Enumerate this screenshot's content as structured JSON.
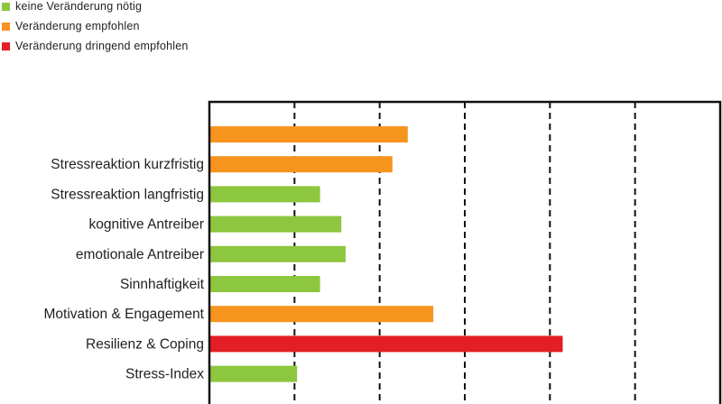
{
  "legend": [
    {
      "label": "keine Veränderung nötig",
      "color": "#8dc63f"
    },
    {
      "label": "Veränderung empfohlen",
      "color": "#f7941d"
    },
    {
      "label": "Veränderung dringend empfohlen",
      "color": "#e31e24"
    }
  ],
  "chart_data": {
    "type": "bar",
    "orientation": "horizontal",
    "title": "",
    "xlabel": "",
    "ylabel": "",
    "xlim": [
      0,
      6
    ],
    "grid": "vertical dashed lines at 1, 2, 3, 4, 5",
    "categories": [
      "",
      "Stressreaktion kurzfristig",
      "Stressreaktion langfristig",
      "kognitive Antreiber",
      "emotionale Antreiber",
      "Sinnhaftigkeit",
      "Motivation & Engagement",
      "Resilienz & Coping",
      "Stress-Index"
    ],
    "values": [
      2.33,
      2.15,
      1.3,
      1.55,
      1.6,
      1.3,
      2.63,
      4.15,
      1.03
    ],
    "status": [
      "orange",
      "orange",
      "green",
      "green",
      "green",
      "green",
      "orange",
      "red",
      "green"
    ],
    "colors": {
      "green": "#8dc63f",
      "orange": "#f7941d",
      "red": "#e31e24"
    }
  }
}
